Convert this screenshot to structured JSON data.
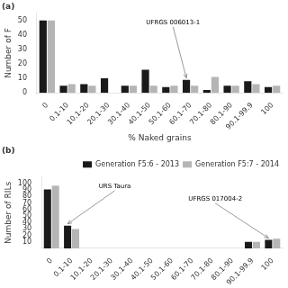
{
  "chart_data": [
    {
      "type": "bar",
      "title": "(a)",
      "categories": [
        "0",
        "0.1-10",
        "10.1-20",
        "20.1-30",
        "30.1-40",
        "40.1-50",
        "50.1-60",
        "60.1-70",
        "70.1-80",
        "80.1-90",
        "90.1-99.9",
        "100"
      ],
      "series": [
        {
          "color": "#1a1a1a",
          "values": [
            50,
            5,
            6,
            10,
            5,
            16,
            4,
            9,
            2,
            5,
            8,
            4
          ]
        },
        {
          "color": "#b5b5b5",
          "values": [
            50,
            6,
            5,
            0,
            5,
            5,
            5,
            5,
            11,
            5,
            6,
            5
          ]
        }
      ],
      "xlabel": "% Naked grains",
      "ylabel": "Number of F",
      "ylim": [
        0,
        55
      ],
      "yticks": [
        0,
        10,
        20,
        30,
        40,
        50
      ],
      "grid": false,
      "annotations": [
        {
          "text": "UFRGS 006013-1",
          "x": "60.1-70"
        }
      ]
    },
    {
      "type": "bar",
      "title": "(b)",
      "categories": [
        "0",
        "0.1-10",
        "10.1-20",
        "20.1-30",
        "30.1-40",
        "40.1-50",
        "50.1-60",
        "60.1-70",
        "70.1-80",
        "80.1-90",
        "90.1-99.9",
        "100"
      ],
      "series": [
        {
          "name": "Generation F5:6 - 2013",
          "color": "#1a1a1a",
          "values": [
            91,
            35,
            0,
            0,
            0,
            0,
            0,
            0,
            0,
            0,
            10,
            13
          ]
        },
        {
          "name": "Generation F5:7 - 2014",
          "color": "#b5b5b5",
          "values": [
            97,
            30,
            0,
            0,
            0,
            0,
            0,
            0,
            0,
            0,
            10,
            15
          ]
        }
      ],
      "ylabel": "Number of RILs",
      "ylim": [
        0,
        110
      ],
      "yticks": [
        10,
        20,
        30,
        40,
        50,
        60,
        70,
        80,
        90,
        100
      ],
      "grid": false,
      "legend": "upper right",
      "annotations": [
        {
          "text": "URS Taura",
          "x": "0.1-10"
        },
        {
          "text": "UFRGS 017004-2",
          "x": "100"
        }
      ]
    }
  ]
}
